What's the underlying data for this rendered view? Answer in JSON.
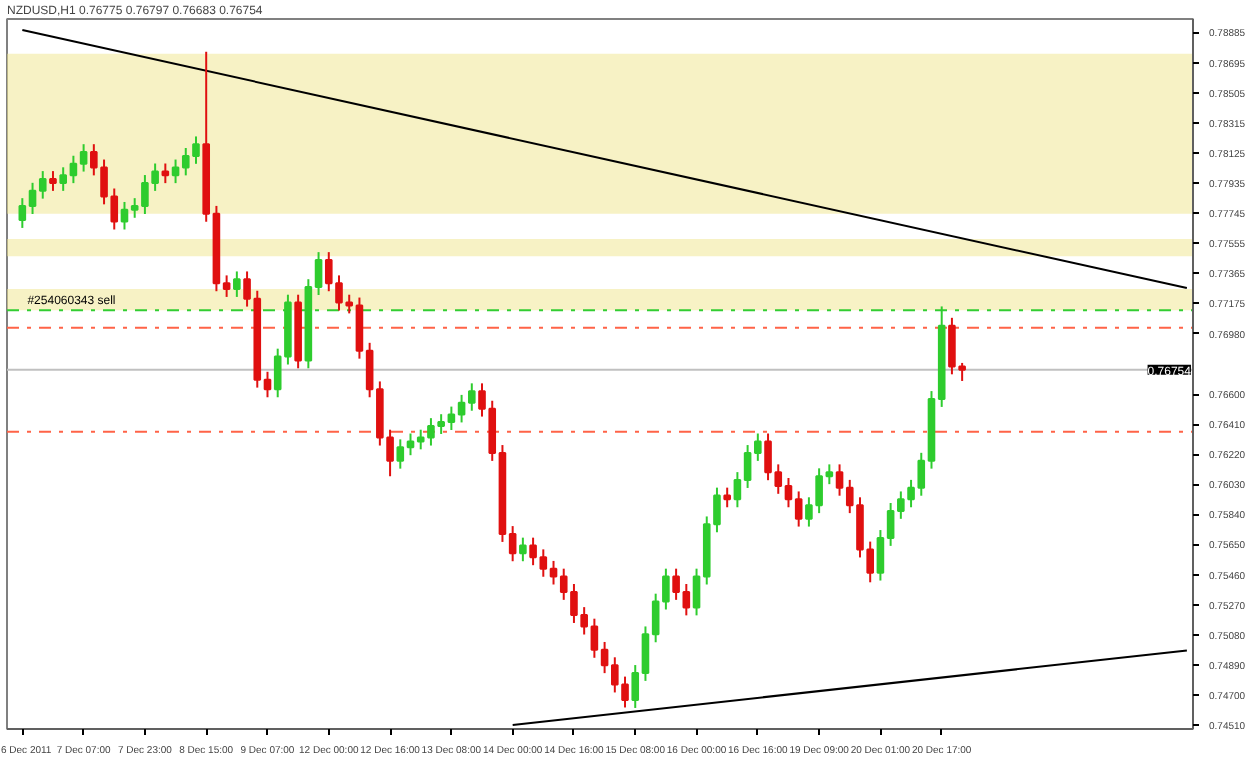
{
  "chart_data": {
    "type": "candlestick",
    "title": "NZDUSD,H1  0.76775 0.76797 0.76683 0.76754",
    "categories": [
      "6 Dec 2011",
      null,
      null,
      null,
      null,
      null,
      "7 Dec 07:00",
      null,
      null,
      null,
      null,
      null,
      "7 Dec 23:00",
      null,
      null,
      null,
      null,
      null,
      "8 Dec 15:00",
      null,
      null,
      null,
      null,
      null,
      "9 Dec 07:00",
      null,
      null,
      null,
      null,
      null,
      "12 Dec 00:00",
      null,
      null,
      null,
      null,
      null,
      "12 Dec 16:00",
      null,
      null,
      null,
      null,
      null,
      "13 Dec 08:00",
      null,
      null,
      null,
      null,
      null,
      "14 Dec 00:00",
      null,
      null,
      null,
      null,
      null,
      "14 Dec 16:00",
      null,
      null,
      null,
      null,
      null,
      "15 Dec 08:00",
      null,
      null,
      null,
      null,
      null,
      "16 Dec 00:00",
      null,
      null,
      null,
      null,
      null,
      "16 Dec 16:00",
      null,
      null,
      null,
      null,
      null,
      "19 Dec 09:00",
      null,
      null,
      null,
      null,
      null,
      "20 Dec 01:00",
      null,
      null,
      null,
      null,
      null,
      "20 Dec 17:00",
      null,
      null,
      null,
      null,
      null,
      null,
      null,
      null,
      null,
      null,
      null,
      null,
      null,
      null,
      null,
      null,
      null,
      null,
      null,
      null,
      null,
      null,
      null,
      null
    ],
    "ohlc": [
      [
        0.777,
        0.77838,
        0.7765,
        0.77788
      ],
      [
        0.77788,
        0.77935,
        0.77738,
        0.77885
      ],
      [
        0.77885,
        0.78009,
        0.77835,
        0.77959
      ],
      [
        0.77959,
        0.78009,
        0.77884,
        0.77934
      ],
      [
        0.77934,
        0.78033,
        0.77884,
        0.77983
      ],
      [
        0.77983,
        0.78106,
        0.77933,
        0.78056
      ],
      [
        0.78056,
        0.78179,
        0.78006,
        0.78129
      ],
      [
        0.78129,
        0.78179,
        0.77982,
        0.78032
      ],
      [
        0.78032,
        0.78082,
        0.77799,
        0.77849
      ],
      [
        0.77849,
        0.77899,
        0.7764,
        0.7769
      ],
      [
        0.7769,
        0.77814,
        0.7764,
        0.77764
      ],
      [
        0.77764,
        0.77838,
        0.77714,
        0.77788
      ],
      [
        0.77788,
        0.77984,
        0.77738,
        0.77934
      ],
      [
        0.77934,
        0.78057,
        0.77884,
        0.78007
      ],
      [
        0.78007,
        0.78057,
        0.77933,
        0.77983
      ],
      [
        0.77983,
        0.78082,
        0.77933,
        0.78032
      ],
      [
        0.78032,
        0.78155,
        0.77982,
        0.78105
      ],
      [
        0.78105,
        0.78228,
        0.78055,
        0.78178
      ],
      [
        0.78178,
        0.78763,
        0.77689,
        0.77739
      ],
      [
        0.77739,
        0.77789,
        0.7725,
        0.773
      ],
      [
        0.773,
        0.7735,
        0.77214,
        0.77264
      ],
      [
        0.77264,
        0.77375,
        0.77214,
        0.77325
      ],
      [
        0.77325,
        0.77375,
        0.77153,
        0.77203
      ],
      [
        0.77203,
        0.77253,
        0.76641,
        0.76691
      ],
      [
        0.76691,
        0.76741,
        0.7658,
        0.7663
      ],
      [
        0.7663,
        0.76887,
        0.7658,
        0.76837
      ],
      [
        0.76837,
        0.77228,
        0.76787,
        0.77178
      ],
      [
        0.77178,
        0.77228,
        0.76763,
        0.76813
      ],
      [
        0.76813,
        0.77326,
        0.76763,
        0.77276
      ],
      [
        0.77276,
        0.77497,
        0.77226,
        0.77447
      ],
      [
        0.77447,
        0.77497,
        0.7725,
        0.773
      ],
      [
        0.773,
        0.7735,
        0.77128,
        0.77178
      ],
      [
        0.77178,
        0.77228,
        0.7711,
        0.7716
      ],
      [
        0.7716,
        0.7721,
        0.76824,
        0.76874
      ],
      [
        0.76874,
        0.76924,
        0.7658,
        0.7663
      ],
      [
        0.7663,
        0.7668,
        0.76275,
        0.76325
      ],
      [
        0.76325,
        0.76375,
        0.76081,
        0.76179
      ],
      [
        0.76179,
        0.76314,
        0.76129,
        0.76264
      ],
      [
        0.76264,
        0.76351,
        0.76214,
        0.76301
      ],
      [
        0.76301,
        0.76375,
        0.76251,
        0.76325
      ],
      [
        0.76325,
        0.76448,
        0.76275,
        0.76398
      ],
      [
        0.76398,
        0.76473,
        0.76348,
        0.76423
      ],
      [
        0.76423,
        0.76521,
        0.76373,
        0.76471
      ],
      [
        0.76471,
        0.76595,
        0.76421,
        0.76545
      ],
      [
        0.76545,
        0.76668,
        0.76495,
        0.76618
      ],
      [
        0.76618,
        0.76668,
        0.76458,
        0.76508
      ],
      [
        0.76508,
        0.76558,
        0.76178,
        0.76228
      ],
      [
        0.76228,
        0.76278,
        0.75666,
        0.75716
      ],
      [
        0.75716,
        0.75766,
        0.75544,
        0.75594
      ],
      [
        0.75594,
        0.75693,
        0.75544,
        0.75643
      ],
      [
        0.75643,
        0.75693,
        0.75519,
        0.75569
      ],
      [
        0.75569,
        0.75619,
        0.75446,
        0.75496
      ],
      [
        0.75496,
        0.75546,
        0.75397,
        0.75447
      ],
      [
        0.75447,
        0.75497,
        0.753,
        0.7535
      ],
      [
        0.7535,
        0.754,
        0.75154,
        0.75204
      ],
      [
        0.75204,
        0.75254,
        0.75081,
        0.75131
      ],
      [
        0.75131,
        0.75181,
        0.74934,
        0.74984
      ],
      [
        0.74984,
        0.75034,
        0.74837,
        0.74887
      ],
      [
        0.74887,
        0.74937,
        0.74715,
        0.74765
      ],
      [
        0.74765,
        0.74815,
        0.7462,
        0.74667
      ],
      [
        0.74667,
        0.74888,
        0.74617,
        0.74838
      ],
      [
        0.74838,
        0.75132,
        0.74788,
        0.75082
      ],
      [
        0.75082,
        0.75339,
        0.75032,
        0.75289
      ],
      [
        0.75289,
        0.75497,
        0.75239,
        0.75447
      ],
      [
        0.75447,
        0.75497,
        0.753,
        0.7535
      ],
      [
        0.7535,
        0.754,
        0.75202,
        0.75252
      ],
      [
        0.75252,
        0.75497,
        0.75202,
        0.75447
      ],
      [
        0.75447,
        0.75827,
        0.75397,
        0.75777
      ],
      [
        0.75777,
        0.76009,
        0.75727,
        0.75959
      ],
      [
        0.75959,
        0.76009,
        0.75885,
        0.75935
      ],
      [
        0.75935,
        0.76107,
        0.75885,
        0.76057
      ],
      [
        0.76057,
        0.76278,
        0.76007,
        0.76228
      ],
      [
        0.76228,
        0.76351,
        0.76178,
        0.76301
      ],
      [
        0.76301,
        0.76351,
        0.76056,
        0.76106
      ],
      [
        0.76106,
        0.76156,
        0.7597,
        0.7602
      ],
      [
        0.7602,
        0.7607,
        0.75885,
        0.75935
      ],
      [
        0.75935,
        0.75985,
        0.75763,
        0.75813
      ],
      [
        0.75813,
        0.75948,
        0.75763,
        0.75898
      ],
      [
        0.75898,
        0.76131,
        0.75848,
        0.76081
      ],
      [
        0.76081,
        0.76156,
        0.76031,
        0.76106
      ],
      [
        0.76106,
        0.76156,
        0.75958,
        0.76008
      ],
      [
        0.76008,
        0.76058,
        0.75848,
        0.75898
      ],
      [
        0.75898,
        0.75948,
        0.75568,
        0.75618
      ],
      [
        0.75618,
        0.75668,
        0.75411,
        0.75472
      ],
      [
        0.75472,
        0.75741,
        0.75422,
        0.75691
      ],
      [
        0.75691,
        0.75912,
        0.75641,
        0.75862
      ],
      [
        0.75862,
        0.75985,
        0.75812,
        0.75935
      ],
      [
        0.75935,
        0.76058,
        0.75885,
        0.76008
      ],
      [
        0.76008,
        0.76229,
        0.75958,
        0.76179
      ],
      [
        0.76179,
        0.76619,
        0.76129,
        0.76569
      ],
      [
        0.76569,
        0.77154,
        0.76519,
        0.77032
      ],
      [
        0.77032,
        0.77082,
        0.76725,
        0.76775
      ],
      [
        0.76775,
        0.76797,
        0.76683,
        0.76754
      ],
      null,
      null,
      null,
      null,
      null,
      null,
      null,
      null,
      null,
      null,
      null,
      null,
      null,
      null,
      null,
      null,
      null,
      null,
      null,
      null,
      null,
      null
    ],
    "colors": [
      "#2ecc2e",
      "#2ecc2e",
      "#2ecc2e",
      "#e01010",
      "#2ecc2e",
      "#2ecc2e",
      "#2ecc2e",
      "#e01010",
      "#e01010",
      "#e01010",
      "#2ecc2e",
      "#2ecc2e",
      "#2ecc2e",
      "#2ecc2e",
      "#e01010",
      "#2ecc2e",
      "#2ecc2e",
      "#2ecc2e",
      "#e01010",
      "#e01010",
      "#e01010",
      "#2ecc2e",
      "#e01010",
      "#e01010",
      "#e01010",
      "#2ecc2e",
      "#2ecc2e",
      "#e01010",
      "#2ecc2e",
      "#2ecc2e",
      "#e01010",
      "#e01010",
      "#e01010",
      "#e01010",
      "#e01010",
      "#e01010",
      "#e01010",
      "#2ecc2e",
      "#2ecc2e",
      "#2ecc2e",
      "#2ecc2e",
      "#2ecc2e",
      "#2ecc2e",
      "#2ecc2e",
      "#2ecc2e",
      "#e01010",
      "#e01010",
      "#e01010",
      "#e01010",
      "#2ecc2e",
      "#e01010",
      "#e01010",
      "#e01010",
      "#e01010",
      "#e01010",
      "#e01010",
      "#e01010",
      "#e01010",
      "#e01010",
      "#e01010",
      "#2ecc2e",
      "#2ecc2e",
      "#2ecc2e",
      "#2ecc2e",
      "#e01010",
      "#e01010",
      "#2ecc2e",
      "#2ecc2e",
      "#2ecc2e",
      "#e01010",
      "#2ecc2e",
      "#2ecc2e",
      "#2ecc2e",
      "#e01010",
      "#e01010",
      "#e01010",
      "#e01010",
      "#2ecc2e",
      "#2ecc2e",
      "#2ecc2e",
      "#e01010",
      "#e01010",
      "#e01010",
      "#e01010",
      "#2ecc2e",
      "#2ecc2e",
      "#2ecc2e",
      "#2ecc2e",
      "#2ecc2e",
      "#2ecc2e",
      "#2ecc2e",
      "#e01010",
      "#e01010",
      null,
      null,
      null,
      null,
      null,
      null,
      null,
      null,
      null,
      null,
      null,
      null,
      null,
      null,
      null,
      null,
      null,
      null,
      null,
      null,
      null,
      null
    ],
    "series": [
      {
        "type": "line",
        "color": "#000000",
        "values": [
          0.789,
          null,
          null,
          null,
          null,
          null,
          null,
          null,
          null,
          null,
          null,
          null,
          null,
          null,
          null,
          null,
          null,
          null,
          null,
          null,
          null,
          null,
          null,
          null,
          null,
          null,
          null,
          null,
          null,
          null,
          null,
          null,
          null,
          null,
          null,
          null,
          null,
          null,
          null,
          null,
          null,
          null,
          null,
          null,
          null,
          null,
          null,
          null,
          null,
          null,
          null,
          null,
          null,
          null,
          null,
          null,
          null,
          null,
          null,
          null,
          null,
          null,
          null,
          null,
          null,
          null,
          null,
          null,
          null,
          null,
          null,
          null,
          null,
          null,
          null,
          null,
          null,
          null,
          null,
          null,
          null,
          null,
          null,
          null,
          null,
          null,
          null,
          null,
          null,
          null,
          null,
          null,
          null,
          null,
          null,
          null,
          null,
          null,
          null,
          null,
          null,
          null,
          null,
          null,
          null,
          null,
          null,
          null,
          null,
          null,
          null,
          null,
          null,
          null,
          0.7727
        ]
      },
      {
        "type": "line",
        "color": "#000000",
        "values": [
          null,
          null,
          null,
          null,
          null,
          null,
          null,
          null,
          null,
          null,
          null,
          null,
          null,
          null,
          null,
          null,
          null,
          null,
          null,
          null,
          null,
          null,
          null,
          null,
          null,
          null,
          null,
          null,
          null,
          null,
          null,
          null,
          null,
          null,
          null,
          null,
          null,
          null,
          null,
          null,
          null,
          null,
          null,
          null,
          null,
          null,
          null,
          null,
          0.7451,
          null,
          null,
          null,
          null,
          null,
          null,
          null,
          null,
          null,
          null,
          null,
          null,
          null,
          null,
          null,
          null,
          null,
          null,
          null,
          null,
          null,
          null,
          null,
          null,
          null,
          null,
          null,
          null,
          null,
          null,
          null,
          null,
          null,
          null,
          null,
          null,
          null,
          null,
          null,
          null,
          null,
          null,
          null,
          null,
          null,
          null,
          null,
          null,
          null,
          null,
          null,
          null,
          null,
          null,
          null,
          null,
          null,
          null,
          null,
          null,
          null,
          null,
          null,
          null,
          null,
          0.7498
        ]
      }
    ],
    "ylim": [
      0.74484,
      0.7897
    ],
    "yticks": [
      {
        "value": 0.7451,
        "label": "0.74510"
      },
      {
        "value": 0.747,
        "label": "0.74700"
      },
      {
        "value": 0.7489,
        "label": "0.74890"
      },
      {
        "value": 0.7508,
        "label": "0.75080"
      },
      {
        "value": 0.7527,
        "label": "0.75270"
      },
      {
        "value": 0.7546,
        "label": "0.75460"
      },
      {
        "value": 0.7565,
        "label": "0.75650"
      },
      {
        "value": 0.7584,
        "label": "0.75840"
      },
      {
        "value": 0.7603,
        "label": "0.76030"
      },
      {
        "value": 0.7622,
        "label": "0.76220"
      },
      {
        "value": 0.7641,
        "label": "0.76410"
      },
      {
        "value": 0.766,
        "label": "0.76600"
      },
      {
        "value": 0.7698,
        "label": "0.76980"
      },
      0.77175,
      0.77365,
      0.77555,
      0.77745,
      0.77935,
      0.78125,
      0.78315,
      0.78505,
      0.78695,
      0.78885
    ],
    "ref_lines": [
      {
        "axis": "y",
        "value": 0.7713,
        "label": "#254060343 sell",
        "color": "#32cd32",
        "line_style": "dashed"
      },
      {
        "axis": "y",
        "value": 0.7702,
        "color": "#ff6347",
        "line_style": "dashed"
      },
      {
        "axis": "y",
        "value": 0.76362,
        "color": "#ff6347",
        "line_style": "dashed"
      },
      {
        "axis": "y",
        "value": 0.76754,
        "label": "0.76754",
        "color": "#c0c0c0",
        "line_style": "solid"
      }
    ],
    "bands": [
      {
        "axis": "y",
        "from": 0.77739,
        "to": 0.78751,
        "color": "#f0e68c"
      },
      {
        "axis": "y",
        "from": 0.77471,
        "to": 0.7758,
        "color": "#f0e68c"
      },
      {
        "axis": "y",
        "from": 0.7713,
        "to": 0.77264,
        "color": "#f0e68c"
      }
    ],
    "grid": false
  }
}
